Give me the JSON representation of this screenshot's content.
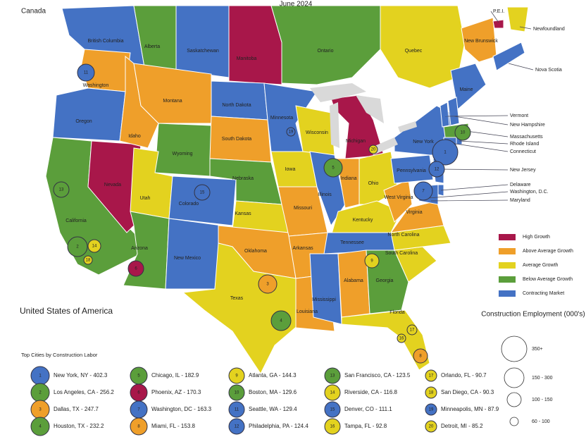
{
  "header": {
    "title": "June 2024",
    "canada": "Canada",
    "usa": "United States of America"
  },
  "regions": [
    {
      "label": "British Columbia",
      "color": "#4472c4"
    },
    {
      "label": "Alberta",
      "color": "#5b9e3b"
    },
    {
      "label": "Saskatchewan",
      "color": "#4472c4"
    },
    {
      "label": "Manitoba",
      "color": "#a8174a"
    },
    {
      "label": "Ontario",
      "color": "#5b9e3b"
    },
    {
      "label": "Quebec",
      "color": "#e3d21f"
    },
    {
      "label": "New Brunswick",
      "color": "#ef9f2a"
    },
    {
      "label": "P.E.I.",
      "color": "#a8174a"
    },
    {
      "label": "Newfoundland",
      "color": "#e3d21f"
    },
    {
      "label": "Nova Scotia",
      "color": "#4472c4"
    },
    {
      "label": "Washington",
      "color": "#ef9f2a"
    },
    {
      "label": "Oregon",
      "color": "#4472c4"
    },
    {
      "label": "California",
      "color": "#5b9e3b"
    },
    {
      "label": "Nevada",
      "color": "#a8174a"
    },
    {
      "label": "Idaho",
      "color": "#ef9f2a"
    },
    {
      "label": "Montana",
      "color": "#ef9f2a"
    },
    {
      "label": "Wyoming",
      "color": "#5b9e3b"
    },
    {
      "label": "Utah",
      "color": "#e3d21f"
    },
    {
      "label": "Arizona",
      "color": "#5b9e3b"
    },
    {
      "label": "Colorado",
      "color": "#4472c4"
    },
    {
      "label": "New Mexico",
      "color": "#4472c4"
    },
    {
      "label": "North Dakota",
      "color": "#4472c4"
    },
    {
      "label": "South Dakota",
      "color": "#ef9f2a"
    },
    {
      "label": "Nebraska",
      "color": "#5b9e3b"
    },
    {
      "label": "Kansas",
      "color": "#e3d21f"
    },
    {
      "label": "Oklahoma",
      "color": "#ef9f2a"
    },
    {
      "label": "Texas",
      "color": "#e3d21f"
    },
    {
      "label": "Minnesota",
      "color": "#4472c4"
    },
    {
      "label": "Iowa",
      "color": "#e3d21f"
    },
    {
      "label": "Missouri",
      "color": "#ef9f2a"
    },
    {
      "label": "Arkansas",
      "color": "#ef9f2a"
    },
    {
      "label": "Louisiana",
      "color": "#ef9f2a"
    },
    {
      "label": "Wisconsin",
      "color": "#e3d21f"
    },
    {
      "label": "Illinois",
      "color": "#4472c4"
    },
    {
      "label": "Michigan",
      "color": "#a8174a"
    },
    {
      "label": "Indiana",
      "color": "#ef9f2a"
    },
    {
      "label": "Ohio",
      "color": "#e3d21f"
    },
    {
      "label": "Kentucky",
      "color": "#e3d21f"
    },
    {
      "label": "Tennessee",
      "color": "#4472c4"
    },
    {
      "label": "Mississippi",
      "color": "#4472c4"
    },
    {
      "label": "Alabama",
      "color": "#ef9f2a"
    },
    {
      "label": "Georgia",
      "color": "#5b9e3b"
    },
    {
      "label": "Florida",
      "color": "#e3d21f"
    },
    {
      "label": "South Carolina",
      "color": "#e3d21f"
    },
    {
      "label": "North Carolina",
      "color": "#e3d21f"
    },
    {
      "label": "Virginia",
      "color": "#ef9f2a"
    },
    {
      "label": "West Virginia",
      "color": "#ef9f2a"
    },
    {
      "label": "Pennsylvania",
      "color": "#4472c4"
    },
    {
      "label": "New York",
      "color": "#4472c4"
    },
    {
      "label": "Maine",
      "color": "#4472c4"
    },
    {
      "label": "Vermont",
      "color": "#4472c4"
    },
    {
      "label": "New Hampshire",
      "color": "#4472c4"
    },
    {
      "label": "Massachusetts",
      "color": "#5b9e3b"
    },
    {
      "label": "Rhode Island",
      "color": "#4472c4"
    },
    {
      "label": "Connecticut",
      "color": "#4472c4"
    },
    {
      "label": "New Jersey",
      "color": "#4472c4"
    },
    {
      "label": "Delaware",
      "color": "#4472c4"
    },
    {
      "label": "Washington, D.C.",
      "color": "#4472c4"
    },
    {
      "label": "Maryland",
      "color": "#4472c4"
    }
  ],
  "legend": [
    {
      "label": "High Growth",
      "color": "#a8174a"
    },
    {
      "label": "Above Average Growth",
      "color": "#ef9f2a"
    },
    {
      "label": "Average Growth",
      "color": "#e3d21f"
    },
    {
      "label": "Below Average Growth",
      "color": "#5b9e3b"
    },
    {
      "label": "Contracting Market",
      "color": "#4472c4"
    }
  ],
  "size_legend": {
    "title": "Construction Employment (000's)",
    "items": [
      "350+",
      "150 - 300",
      "100 - 150",
      "60 - 100"
    ]
  },
  "cities": {
    "title": "Top Cities by Construction Labor",
    "items": [
      {
        "rank": "1",
        "label": "New York, NY - 402.3",
        "color": "#4472c4"
      },
      {
        "rank": "2",
        "label": "Los Angeles, CA - 256.2",
        "color": "#5b9e3b"
      },
      {
        "rank": "3",
        "label": "Dallas, TX - 247.7",
        "color": "#ef9f2a"
      },
      {
        "rank": "4",
        "label": "Houston, TX - 232.2",
        "color": "#5b9e3b"
      },
      {
        "rank": "5",
        "label": "Chicago, IL - 182.9",
        "color": "#5b9e3b"
      },
      {
        "rank": "6",
        "label": "Phoenix, AZ - 170.3",
        "color": "#a8174a"
      },
      {
        "rank": "7",
        "label": "Washington, DC - 163.3",
        "color": "#4472c4"
      },
      {
        "rank": "8",
        "label": "Miami, FL - 153.8",
        "color": "#ef9f2a"
      },
      {
        "rank": "9",
        "label": "Atlanta, GA - 144.3",
        "color": "#e3d21f"
      },
      {
        "rank": "10",
        "label": "Boston, MA - 129.6",
        "color": "#5b9e3b"
      },
      {
        "rank": "11",
        "label": "Seattle, WA - 129.4",
        "color": "#4472c4"
      },
      {
        "rank": "12",
        "label": "Philadelphia, PA - 124.4",
        "color": "#4472c4"
      },
      {
        "rank": "13",
        "label": "San Francisco, CA - 123.5",
        "color": "#5b9e3b"
      },
      {
        "rank": "14",
        "label": "Riverside, CA - 116.8",
        "color": "#e3d21f"
      },
      {
        "rank": "15",
        "label": "Denver, CO - 111.1",
        "color": "#4472c4"
      },
      {
        "rank": "16",
        "label": "Tampa, FL - 92.8",
        "color": "#e3d21f"
      },
      {
        "rank": "17",
        "label": "Orlando, FL - 90.7",
        "color": "#e3d21f"
      },
      {
        "rank": "18",
        "label": "San Diego, CA - 90.3",
        "color": "#e3d21f"
      },
      {
        "rank": "19",
        "label": "Minneapolis, MN - 87.9",
        "color": "#4472c4"
      },
      {
        "rank": "20",
        "label": "Detroit, MI - 85.2",
        "color": "#e3d21f"
      }
    ]
  }
}
